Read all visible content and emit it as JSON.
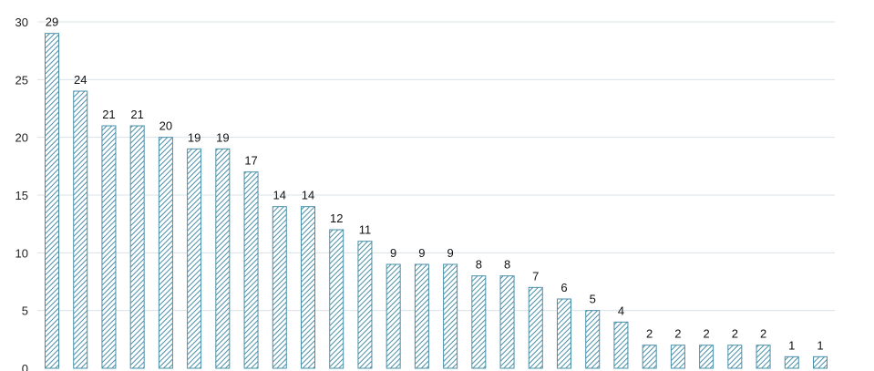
{
  "chart_data": {
    "type": "bar",
    "title": "",
    "xlabel": "",
    "ylabel": "",
    "categories": [
      "",
      "",
      "",
      "",
      "",
      "",
      "",
      "",
      "",
      "",
      "",
      "",
      "",
      "",
      "",
      "",
      "",
      "",
      "",
      "",
      "",
      "",
      "",
      "",
      "",
      "",
      "",
      ""
    ],
    "values": [
      29,
      24,
      21,
      21,
      20,
      19,
      19,
      17,
      14,
      14,
      12,
      11,
      9,
      9,
      9,
      8,
      8,
      7,
      6,
      5,
      4,
      2,
      2,
      2,
      2,
      2,
      1,
      1
    ],
    "ylim": [
      0,
      30
    ],
    "yticks": [
      "0",
      "5",
      "10",
      "15",
      "20",
      "25",
      "30"
    ],
    "data_labels": [
      "29",
      "24",
      "21",
      "21",
      "20",
      "19",
      "19",
      "17",
      "14",
      "14",
      "12",
      "11",
      "9",
      "9",
      "9",
      "8",
      "8",
      "7",
      "6",
      "5",
      "4",
      "2",
      "2",
      "2",
      "2",
      "2",
      "1",
      "1"
    ],
    "grid": true,
    "legend": "none",
    "bar_color": "#4a8fa8",
    "bar_pattern": "diagonal-hatch",
    "grid_color": "#d9e3ea"
  }
}
